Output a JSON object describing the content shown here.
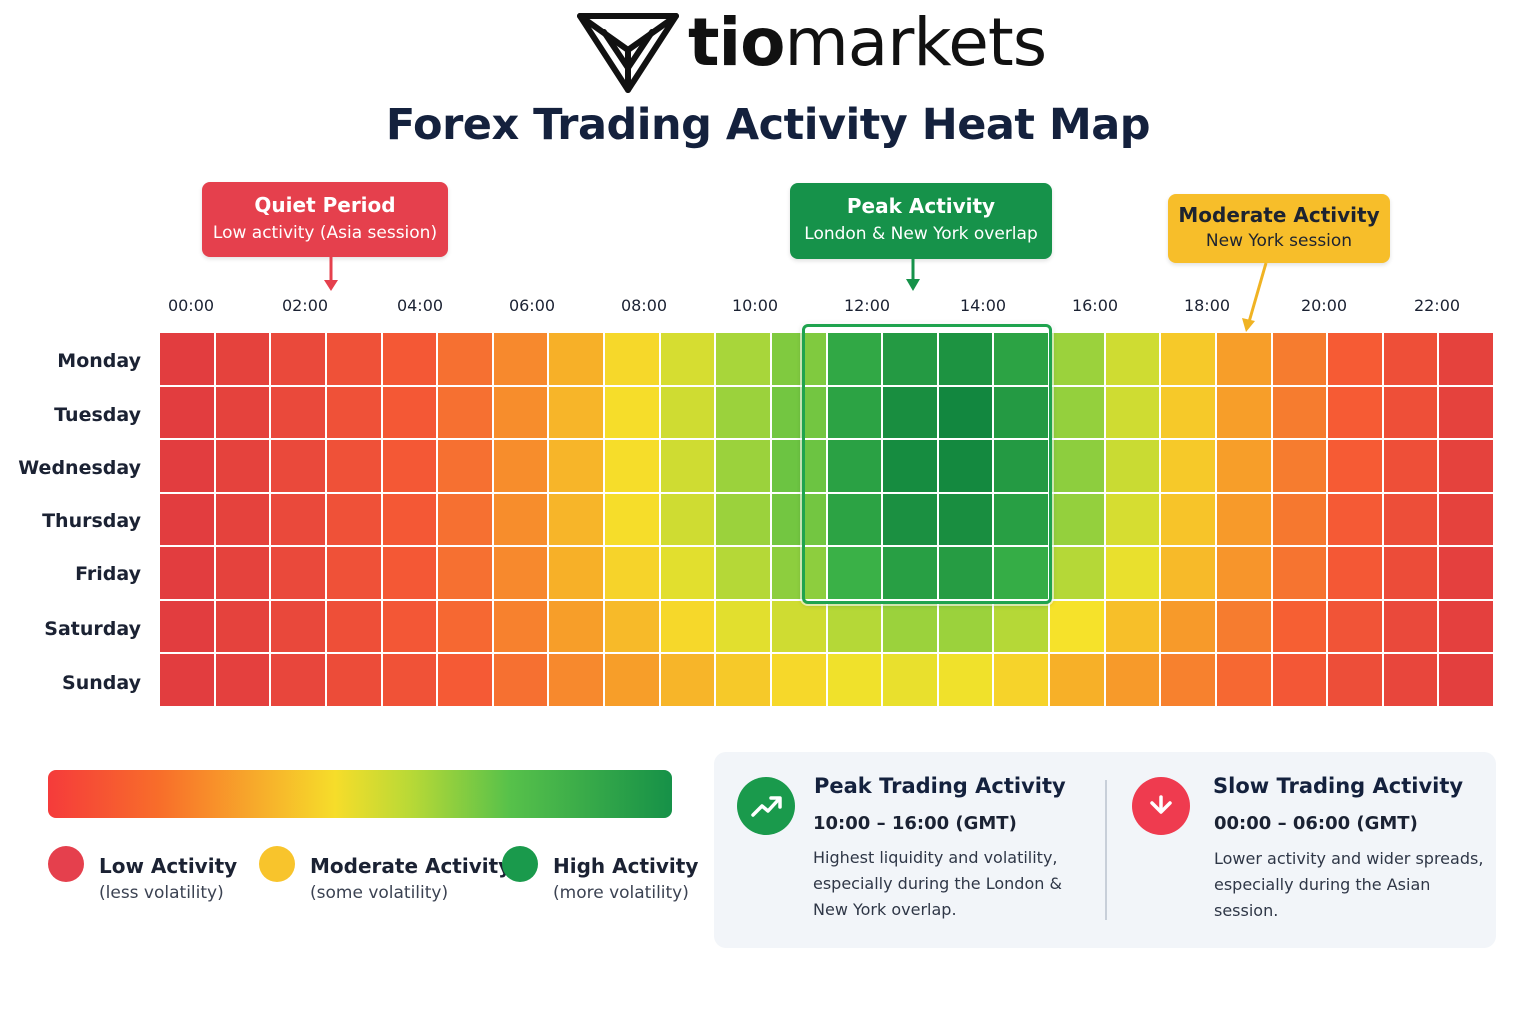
{
  "logo": {
    "bold": "tio",
    "rest": "markets"
  },
  "title": "Forex Trading Activity Heat Map",
  "callouts": {
    "quiet": {
      "title": "Quiet Period",
      "subtitle": "Low activity (Asia session)",
      "color": "#e5404d"
    },
    "peak": {
      "title": "Peak Activity",
      "subtitle": "London & New York overlap",
      "color": "#16924a"
    },
    "moderate": {
      "title": "Moderate Activity",
      "subtitle": "New York session",
      "color": "#f7be2a"
    }
  },
  "legend": {
    "low": {
      "title": "Low Activity",
      "subtitle": "(less volatility)",
      "color": "#e5404d"
    },
    "moderate": {
      "title": "Moderate Activity",
      "subtitle": "(some volatility)",
      "color": "#f8c42c"
    },
    "high": {
      "title": "High Activity",
      "subtitle": "(more volatility)",
      "color": "#1a9a4c"
    }
  },
  "info": {
    "peak": {
      "title": "Peak Trading Activity",
      "time": "10:00 – 16:00 (GMT)",
      "line1": "Highest liquidity and volatility,",
      "line2": "especially during the London &",
      "line3": "New York overlap.",
      "icon": "trending-up-icon",
      "color": "#1a9a4c"
    },
    "slow": {
      "title": "Slow Trading Activity",
      "time": "00:00 – 06:00 (GMT)",
      "line1": "Lower activity and wider spreads,",
      "line2": "especially during the Asian session.",
      "icon": "arrow-down-icon",
      "color": "#ef3b4f"
    }
  },
  "chart_data": {
    "type": "heatmap",
    "title": "Forex Trading Activity Heat Map",
    "x_tick_labels": [
      "00:00",
      "02:00",
      "04:00",
      "06:00",
      "08:00",
      "10:00",
      "12:00",
      "14:00",
      "16:00",
      "18:00",
      "20:00",
      "22:00"
    ],
    "y_categories": [
      "Monday",
      "Tuesday",
      "Wednesday",
      "Thursday",
      "Friday",
      "Saturday",
      "Sunday"
    ],
    "color_scale": {
      "low": "#e03a40",
      "high": "#12873f"
    },
    "values": [
      [
        0.02,
        0.05,
        0.1,
        0.15,
        0.2,
        0.27,
        0.33,
        0.42,
        0.5,
        0.57,
        0.64,
        0.7,
        0.86,
        0.92,
        0.95,
        0.88,
        0.66,
        0.58,
        0.47,
        0.38,
        0.3,
        0.22,
        0.14,
        0.05
      ],
      [
        0.02,
        0.05,
        0.1,
        0.15,
        0.2,
        0.27,
        0.34,
        0.43,
        0.51,
        0.58,
        0.66,
        0.72,
        0.88,
        0.97,
        1.0,
        0.92,
        0.67,
        0.58,
        0.47,
        0.38,
        0.3,
        0.22,
        0.14,
        0.05
      ],
      [
        0.02,
        0.05,
        0.1,
        0.15,
        0.2,
        0.27,
        0.34,
        0.43,
        0.51,
        0.58,
        0.66,
        0.73,
        0.89,
        0.98,
        0.99,
        0.92,
        0.68,
        0.59,
        0.47,
        0.38,
        0.3,
        0.22,
        0.14,
        0.05
      ],
      [
        0.02,
        0.05,
        0.1,
        0.15,
        0.2,
        0.27,
        0.34,
        0.43,
        0.51,
        0.58,
        0.66,
        0.72,
        0.88,
        0.96,
        0.97,
        0.9,
        0.67,
        0.57,
        0.46,
        0.37,
        0.29,
        0.21,
        0.13,
        0.05
      ],
      [
        0.02,
        0.05,
        0.1,
        0.15,
        0.2,
        0.27,
        0.33,
        0.42,
        0.49,
        0.55,
        0.62,
        0.68,
        0.82,
        0.9,
        0.91,
        0.84,
        0.62,
        0.54,
        0.44,
        0.36,
        0.28,
        0.2,
        0.12,
        0.04
      ],
      [
        0.02,
        0.05,
        0.09,
        0.14,
        0.19,
        0.25,
        0.31,
        0.38,
        0.44,
        0.5,
        0.55,
        0.58,
        0.62,
        0.66,
        0.66,
        0.62,
        0.52,
        0.45,
        0.37,
        0.3,
        0.23,
        0.17,
        0.1,
        0.04
      ],
      [
        0.02,
        0.04,
        0.08,
        0.12,
        0.16,
        0.21,
        0.27,
        0.33,
        0.38,
        0.43,
        0.47,
        0.5,
        0.53,
        0.54,
        0.53,
        0.49,
        0.42,
        0.37,
        0.31,
        0.25,
        0.19,
        0.13,
        0.08,
        0.03
      ]
    ],
    "highlight": {
      "label": "Peak Activity",
      "x_range": [
        "12:00",
        "16:00"
      ],
      "rows": [
        "Monday",
        "Friday"
      ]
    },
    "xlabel": "",
    "ylabel": ""
  }
}
